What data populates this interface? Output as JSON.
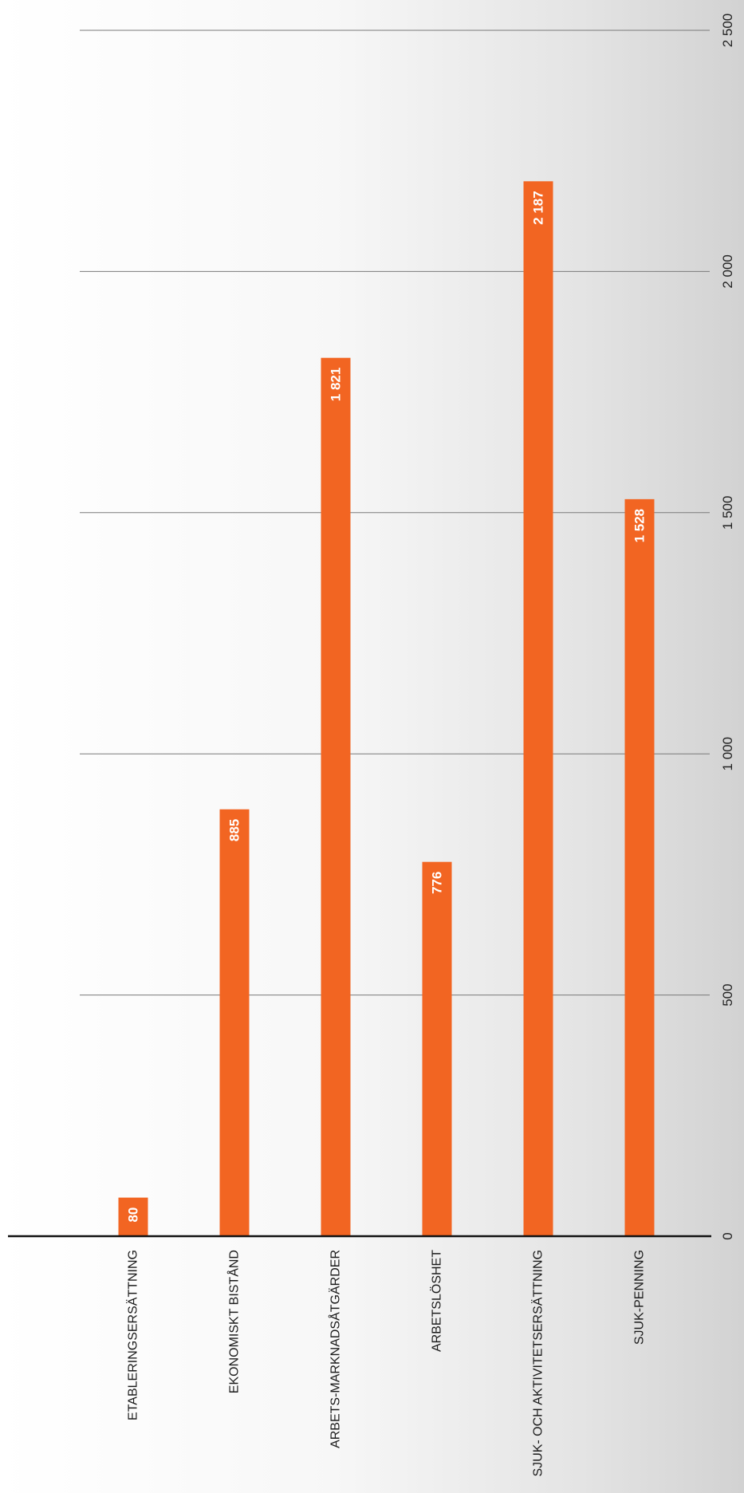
{
  "chart_data": {
    "type": "bar",
    "orientation": "horizontal",
    "categories": [
      "ETABLERINGSERSÄTTNING",
      "EKONOMISKT BISTÅND",
      "ARBETS-MARKNADSÅTGÄRDER",
      "ARBETSLÖSHET",
      "SJUK- OCH AKTIVITETSERSÄTTNING",
      "SJUK-PENNING"
    ],
    "values": [
      80,
      885,
      1821,
      776,
      2187,
      1528
    ],
    "value_labels": [
      "80",
      "885",
      "1 821",
      "776",
      "2 187",
      "1 528"
    ],
    "ticks": [
      0,
      500,
      1000,
      1500,
      2000,
      2500
    ],
    "tick_labels": [
      "0",
      "500",
      "1 000",
      "1 500",
      "2 000",
      "2 500"
    ],
    "xlim": [
      0,
      2500
    ],
    "grid": true,
    "bar_color": "#f26522",
    "title": "",
    "xlabel": "",
    "ylabel": ""
  }
}
